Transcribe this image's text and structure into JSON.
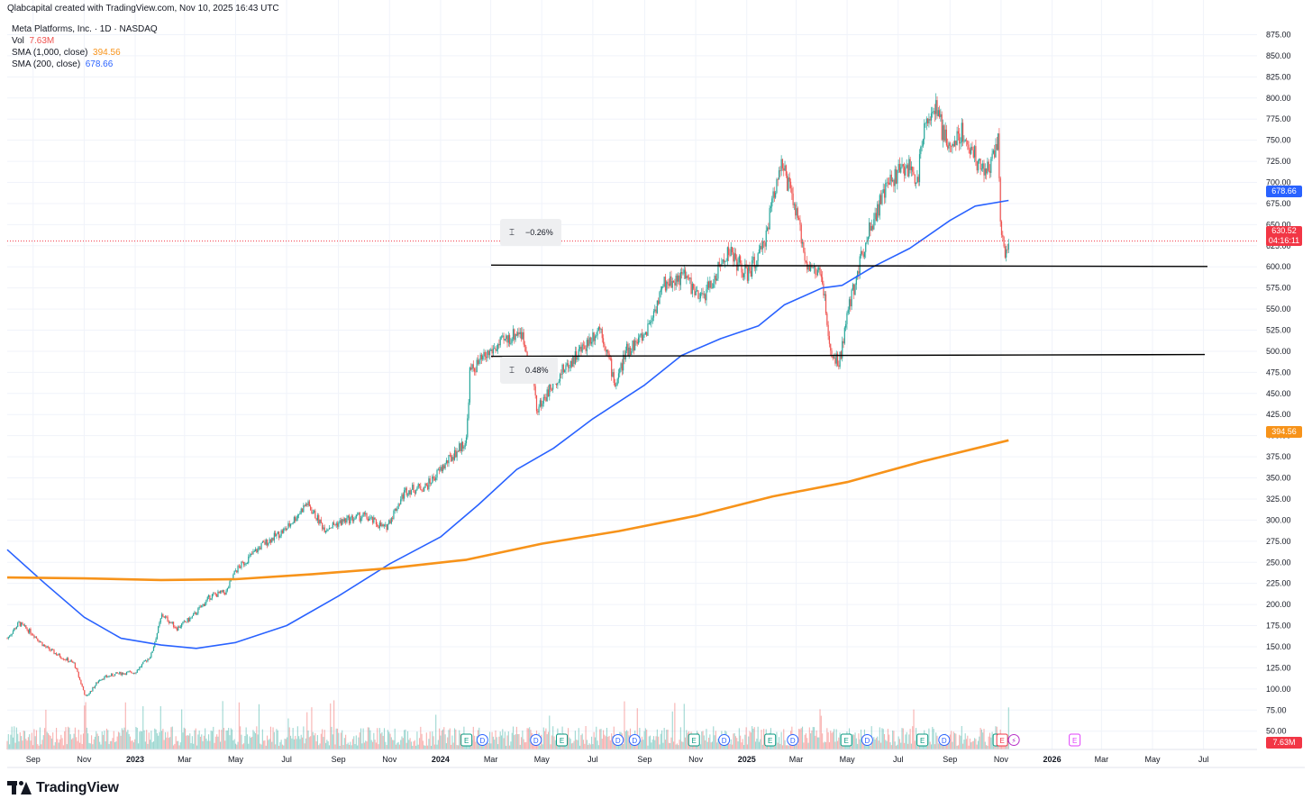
{
  "header": {
    "credit": "Qlabcapital created with TradingView.com, Nov 10, 2025 16:43 UTC"
  },
  "legend": {
    "symbol": "Meta Platforms, Inc. · 1D · NASDAQ",
    "volume_label": "Vol",
    "volume_value": "7.63M",
    "sma1000_label": "SMA (1,000, close)",
    "sma1000_value": "394.56",
    "sma200_label": "SMA (200, close)",
    "sma200_value": "678.66"
  },
  "colors": {
    "up": "#26a69a",
    "down": "#ef5350",
    "sma200": "#2962ff",
    "sma1000": "#f7931a",
    "price_tag": "#f23645",
    "grid": "#f0f3fa",
    "axis_text": "#131722"
  },
  "tags": {
    "sma200": "678.66",
    "last_price": "630.52",
    "countdown": "04:16:11",
    "sma1000": "394.56",
    "volume": "7.63M"
  },
  "measures": [
    {
      "text": "−0.26%"
    },
    {
      "text": "0.48%"
    }
  ],
  "events": [
    "E",
    "D",
    "D",
    "E",
    "D",
    "D",
    "E",
    "D",
    "E",
    "D",
    "E",
    "D",
    "E",
    "D",
    "E",
    "D",
    "E",
    "E",
    "E"
  ],
  "footer": {
    "brand": "TradingView"
  },
  "chart_data": {
    "type": "candlestick",
    "symbol": "Meta Platforms, Inc.",
    "interval": "1D",
    "exchange": "NASDAQ",
    "y_ticks": [
      50,
      75,
      100,
      125,
      150,
      175,
      200,
      225,
      250,
      275,
      300,
      325,
      350,
      375,
      400,
      425,
      450,
      475,
      500,
      525,
      550,
      575,
      600,
      625,
      650,
      675,
      700,
      725,
      750,
      775,
      800,
      825,
      850,
      875
    ],
    "x_ticks": [
      "Sep",
      "Nov",
      "2023",
      "Mar",
      "May",
      "Jul",
      "Sep",
      "Nov",
      "2024",
      "Mar",
      "May",
      "Jul",
      "Sep",
      "Nov",
      "2025",
      "Mar",
      "May",
      "Jul",
      "Sep",
      "Nov",
      "2026",
      "Mar",
      "May",
      "Jul"
    ],
    "price_path": [
      [
        "2022-08-01",
        160
      ],
      [
        "2022-08-15",
        178
      ],
      [
        "2022-09-01",
        165
      ],
      [
        "2022-09-15",
        150
      ],
      [
        "2022-10-01",
        140
      ],
      [
        "2022-10-20",
        130
      ],
      [
        "2022-11-03",
        90
      ],
      [
        "2022-11-20",
        112
      ],
      [
        "2022-12-10",
        118
      ],
      [
        "2023-01-01",
        120
      ],
      [
        "2023-01-20",
        140
      ],
      [
        "2023-02-02",
        188
      ],
      [
        "2023-02-20",
        172
      ],
      [
        "2023-03-10",
        185
      ],
      [
        "2023-04-01",
        210
      ],
      [
        "2023-04-20",
        215
      ],
      [
        "2023-05-01",
        240
      ],
      [
        "2023-06-01",
        270
      ],
      [
        "2023-07-01",
        290
      ],
      [
        "2023-07-25",
        320
      ],
      [
        "2023-08-15",
        290
      ],
      [
        "2023-09-10",
        300
      ],
      [
        "2023-10-01",
        305
      ],
      [
        "2023-10-27",
        290
      ],
      [
        "2023-11-20",
        335
      ],
      [
        "2023-12-15",
        340
      ],
      [
        "2024-01-10",
        370
      ],
      [
        "2024-02-01",
        395
      ],
      [
        "2024-02-05",
        475
      ],
      [
        "2024-03-01",
        500
      ],
      [
        "2024-04-05",
        525
      ],
      [
        "2024-04-20",
        480
      ],
      [
        "2024-04-25",
        430
      ],
      [
        "2024-05-20",
        470
      ],
      [
        "2024-06-20",
        505
      ],
      [
        "2024-07-10",
        530
      ],
      [
        "2024-07-28",
        460
      ],
      [
        "2024-08-10",
        500
      ],
      [
        "2024-09-01",
        520
      ],
      [
        "2024-09-25",
        580
      ],
      [
        "2024-10-20",
        590
      ],
      [
        "2024-11-05",
        560
      ],
      [
        "2024-11-20",
        580
      ],
      [
        "2024-12-10",
        620
      ],
      [
        "2025-01-01",
        590
      ],
      [
        "2025-01-20",
        620
      ],
      [
        "2025-02-10",
        725
      ],
      [
        "2025-02-25",
        680
      ],
      [
        "2025-03-15",
        600
      ],
      [
        "2025-04-01",
        590
      ],
      [
        "2025-04-10",
        500
      ],
      [
        "2025-04-21",
        485
      ],
      [
        "2025-05-05",
        560
      ],
      [
        "2025-05-25",
        640
      ],
      [
        "2025-06-20",
        700
      ],
      [
        "2025-07-10",
        720
      ],
      [
        "2025-07-25",
        705
      ],
      [
        "2025-08-01",
        775
      ],
      [
        "2025-08-15",
        785
      ],
      [
        "2025-08-30",
        740
      ],
      [
        "2025-09-15",
        760
      ],
      [
        "2025-10-01",
        730
      ],
      [
        "2025-10-15",
        710
      ],
      [
        "2025-10-29",
        755
      ],
      [
        "2025-10-31",
        650
      ],
      [
        "2025-11-07",
        610
      ],
      [
        "2025-11-10",
        630.52
      ]
    ],
    "series": [
      {
        "name": "SMA (200, close)",
        "last": 678.66,
        "points": [
          [
            "2022-08-01",
            265
          ],
          [
            "2022-09-15",
            225
          ],
          [
            "2022-11-01",
            185
          ],
          [
            "2022-12-15",
            160
          ],
          [
            "2023-02-01",
            152
          ],
          [
            "2023-03-15",
            148
          ],
          [
            "2023-05-01",
            155
          ],
          [
            "2023-07-01",
            175
          ],
          [
            "2023-09-01",
            210
          ],
          [
            "2023-11-01",
            248
          ],
          [
            "2024-01-01",
            280
          ],
          [
            "2024-02-15",
            318
          ],
          [
            "2024-04-01",
            360
          ],
          [
            "2024-05-15",
            385
          ],
          [
            "2024-07-01",
            420
          ],
          [
            "2024-09-01",
            460
          ],
          [
            "2024-10-15",
            495
          ],
          [
            "2024-12-01",
            515
          ],
          [
            "2025-01-15",
            530
          ],
          [
            "2025-02-15",
            555
          ],
          [
            "2025-04-01",
            575
          ],
          [
            "2025-04-25",
            578
          ],
          [
            "2025-06-01",
            600
          ],
          [
            "2025-07-15",
            622
          ],
          [
            "2025-09-01",
            655
          ],
          [
            "2025-10-01",
            672
          ],
          [
            "2025-11-10",
            678.66
          ]
        ]
      },
      {
        "name": "SMA (1,000, close)",
        "last": 394.56,
        "points": [
          [
            "2022-08-01",
            232
          ],
          [
            "2022-11-01",
            231
          ],
          [
            "2023-02-01",
            229
          ],
          [
            "2023-05-01",
            230
          ],
          [
            "2023-08-01",
            236
          ],
          [
            "2023-11-01",
            243
          ],
          [
            "2024-02-01",
            253
          ],
          [
            "2024-05-01",
            272
          ],
          [
            "2024-08-01",
            287
          ],
          [
            "2024-11-01",
            305
          ],
          [
            "2025-02-01",
            328
          ],
          [
            "2025-05-01",
            345
          ],
          [
            "2025-08-01",
            370
          ],
          [
            "2025-11-10",
            394.56
          ]
        ]
      }
    ],
    "horizontal_lines": [
      602,
      494
    ]
  }
}
